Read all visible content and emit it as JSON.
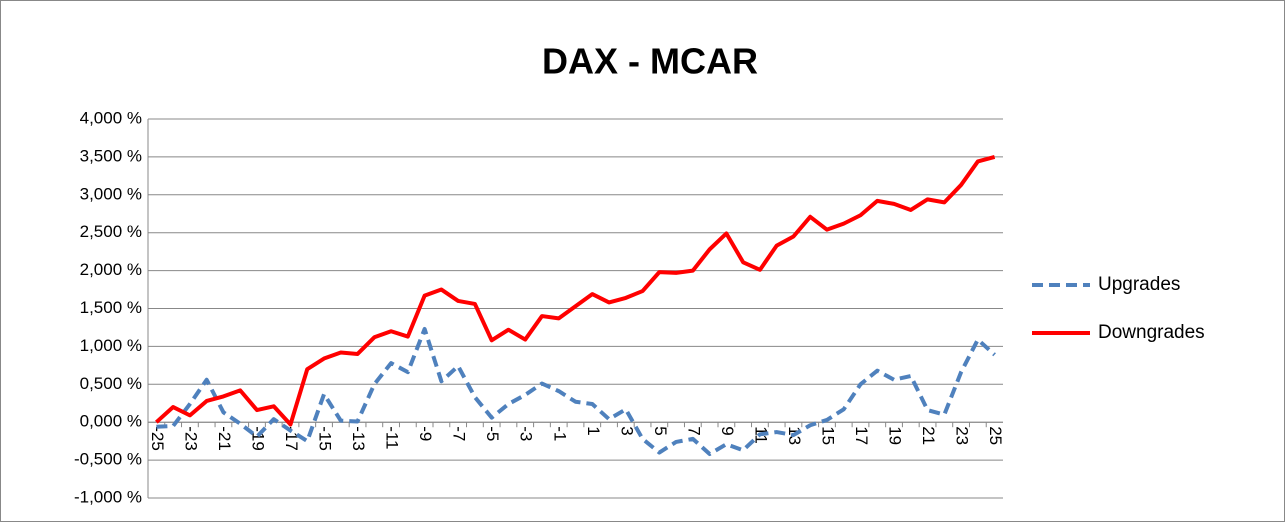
{
  "chart_data": {
    "type": "line",
    "title": "DAX - MCAR",
    "categories": [
      "-25",
      null,
      "-23",
      null,
      "-21",
      null,
      "-19",
      null,
      "-17",
      null,
      "-15",
      null,
      "-13",
      null,
      "-11",
      null,
      "-9",
      null,
      "-7",
      null,
      "-5",
      null,
      "-3",
      null,
      "-1",
      null,
      "1",
      null,
      "3",
      null,
      "5",
      null,
      "7",
      null,
      "9",
      null,
      "11",
      null,
      "13",
      null,
      "15",
      null,
      "17",
      null,
      "19",
      null,
      "21",
      null,
      "23",
      null,
      "25"
    ],
    "series": [
      {
        "name": "Upgrades",
        "color": "#4f81bd",
        "dashed": true,
        "values": [
          -0.06,
          -0.05,
          0.24,
          0.56,
          0.13,
          -0.02,
          -0.19,
          0.04,
          -0.11,
          -0.25,
          0.37,
          0.02,
          0.01,
          0.5,
          0.78,
          0.66,
          1.23,
          0.54,
          0.74,
          0.33,
          0.06,
          0.24,
          0.36,
          0.51,
          0.41,
          0.27,
          0.24,
          0.04,
          0.17,
          -0.22,
          -0.4,
          -0.26,
          -0.22,
          -0.42,
          -0.29,
          -0.37,
          -0.16,
          -0.13,
          -0.17,
          -0.04,
          0.03,
          0.17,
          0.5,
          0.68,
          0.56,
          0.61,
          0.16,
          0.1,
          0.66,
          1.09,
          0.89
        ]
      },
      {
        "name": "Downgrades",
        "color": "#ff0000",
        "dashed": false,
        "values": [
          0.0,
          0.2,
          0.09,
          0.28,
          0.34,
          0.42,
          0.16,
          0.21,
          -0.03,
          0.7,
          0.84,
          0.92,
          0.9,
          1.12,
          1.2,
          1.13,
          1.67,
          1.75,
          1.6,
          1.56,
          1.08,
          1.22,
          1.09,
          1.4,
          1.37,
          1.53,
          1.69,
          1.58,
          1.64,
          1.73,
          1.98,
          1.97,
          2.0,
          2.28,
          2.49,
          2.11,
          2.01,
          2.33,
          2.45,
          2.71,
          2.54,
          2.62,
          2.73,
          2.92,
          2.88,
          2.8,
          2.94,
          2.9,
          3.13,
          3.44,
          3.5
        ]
      }
    ],
    "ylim": [
      -1,
      4
    ],
    "yticks": [
      {
        "value": -1,
        "label": "-1,000 %"
      },
      {
        "value": -0.5,
        "label": "-0,500 %"
      },
      {
        "value": 0,
        "label": "0,000 %"
      },
      {
        "value": 0.5,
        "label": "0,500 %"
      },
      {
        "value": 1,
        "label": "1,000 %"
      },
      {
        "value": 1.5,
        "label": "1,500 %"
      },
      {
        "value": 2,
        "label": "2,000 %"
      },
      {
        "value": 2.5,
        "label": "2,500 %"
      },
      {
        "value": 3,
        "label": "3,000 %"
      },
      {
        "value": 3.5,
        "label": "3,500 %"
      },
      {
        "value": 4,
        "label": "4,000 %"
      }
    ],
    "grid": true,
    "legend": "right"
  }
}
